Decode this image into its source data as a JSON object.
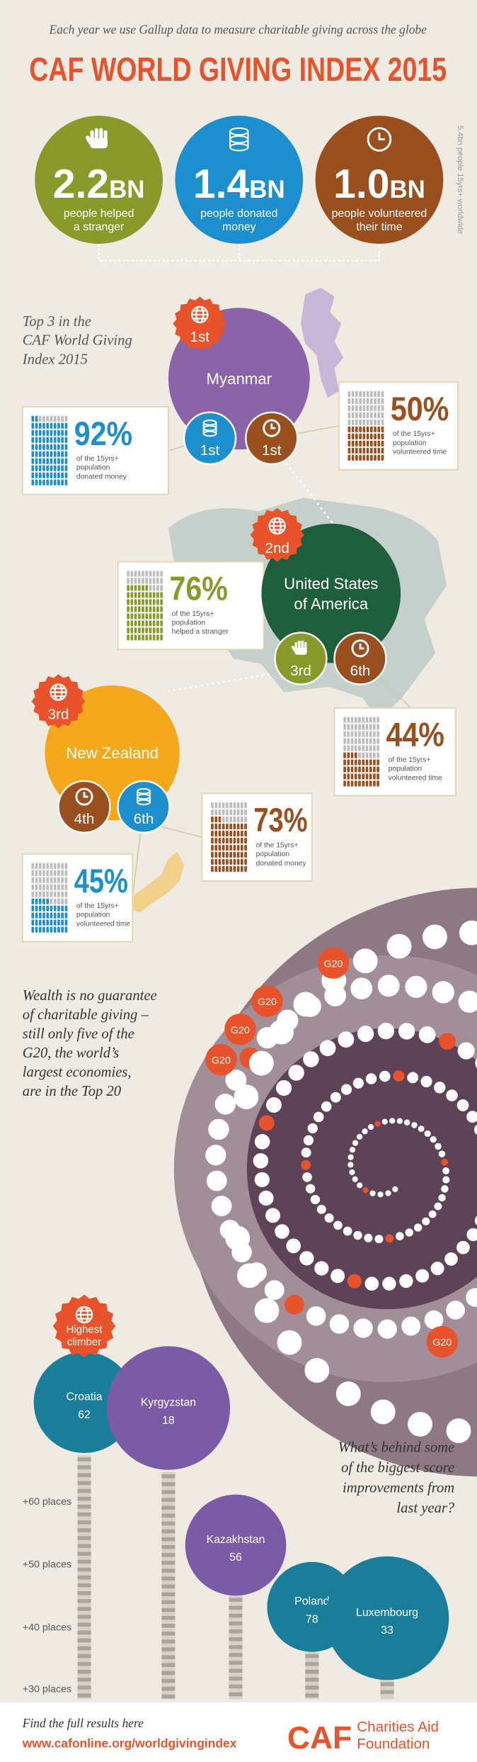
{
  "header": {
    "intro": "Each year we use Gallup data to measure charitable giving across the globe",
    "title": "CAF WORLD GIVING INDEX 2015"
  },
  "stats": [
    {
      "number": "2.2",
      "unit": "BN",
      "caption": [
        "people helped",
        "a stranger"
      ]
    },
    {
      "number": "1.4",
      "unit": "BN",
      "caption": [
        "people donated",
        "money"
      ]
    },
    {
      "number": "1.0",
      "unit": "BN",
      "caption": [
        "people volunteered",
        "their time"
      ]
    }
  ],
  "side_note": "5.4bn people 15yrs+ worldwide",
  "top3": {
    "heading": [
      "Top 3 in the",
      "CAF World Giving",
      "Index 2015"
    ],
    "countries": [
      {
        "rank": "1st",
        "name": [
          "Myanmar"
        ],
        "badges": [
          {
            "rank": "1st"
          },
          {
            "rank": "1st"
          }
        ],
        "callouts": [
          {
            "percent": 92,
            "label": "92%",
            "caption": [
              "of the 15yrs+",
              "population",
              "donated money"
            ]
          },
          {
            "percent": 50,
            "label": "50%",
            "caption": [
              "of the 15yrs+",
              "population",
              "volunteered time"
            ]
          }
        ]
      },
      {
        "rank": "2nd",
        "name": [
          "United States",
          "of America"
        ],
        "badges": [
          {
            "rank": "3rd"
          },
          {
            "rank": "6th"
          }
        ],
        "callouts": [
          {
            "percent": 76,
            "label": "76%",
            "caption": [
              "of the 15yrs+",
              "population",
              "helped a stranger"
            ]
          },
          {
            "percent": 44,
            "label": "44%",
            "caption": [
              "of the 15yrs+",
              "population",
              "volunteered time"
            ]
          }
        ]
      },
      {
        "rank": "3rd",
        "name": [
          "New Zealand"
        ],
        "badges": [
          {
            "rank": "4th"
          },
          {
            "rank": "6th"
          }
        ],
        "callouts": [
          {
            "percent": 73,
            "label": "73%",
            "caption": [
              "of the 15yrs+",
              "population",
              "donated money"
            ]
          },
          {
            "percent": 45,
            "label": "45%",
            "caption": [
              "of the 15yrs+",
              "population",
              "volunteered time"
            ]
          }
        ]
      }
    ]
  },
  "wealth": {
    "text": [
      "Wealth is no guarantee",
      "of charitable giving –",
      "still only five of the",
      "G20, the world’s",
      "largest economies,",
      "are in the Top 20"
    ],
    "g20": "G20"
  },
  "climbers": {
    "badge": [
      "Highest",
      "climber"
    ],
    "heading": [
      "What’s behind some",
      "of the biggest score",
      "improvements from",
      "last year?"
    ],
    "countries": [
      {
        "name": "Croatia",
        "value": 62
      },
      {
        "name": "Kyrgyzstan",
        "value": 18
      },
      {
        "name": "Kazakhstan",
        "value": 56
      },
      {
        "name": "Poland",
        "value": 78
      },
      {
        "name": "Luxembourg",
        "value": 33
      }
    ],
    "scale": [
      "+60 places",
      "+50 places",
      "+40 places",
      "+30 places"
    ]
  },
  "footer": {
    "find": "Find the full results here",
    "url": "www.cafonline.org/worldgivingindex",
    "logo": "CAF",
    "org": [
      "Charities Aid",
      "Foundation"
    ]
  }
}
